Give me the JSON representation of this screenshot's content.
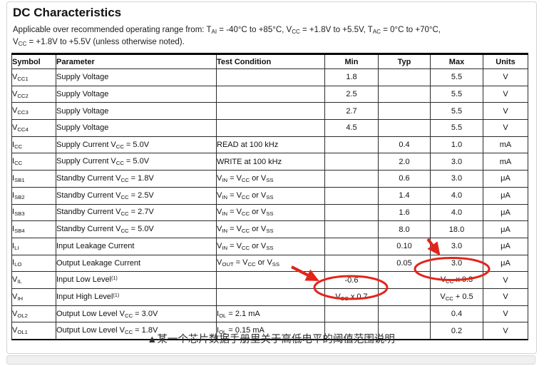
{
  "page": {
    "title": "DC Characteristics",
    "subtitle_line1": "Applicable over recommended operating range from: T~AI~ = -40°C to +85°C, V~CC~ = +1.8V to +5.5V, T~AC~ = 0°C to +70°C,",
    "subtitle_line2": "V~CC~ = +1.8V to +5.5V (unless otherwise noted).",
    "caption": "▲某一个芯片数据手册里关于高低电平的阈值范围说明"
  },
  "table": {
    "headers": [
      "Symbol",
      "Parameter",
      "Test Condition",
      "Min",
      "Typ",
      "Max",
      "Units"
    ],
    "rows": [
      [
        "V~CC1~",
        "Supply Voltage",
        "",
        "1.8",
        "",
        "5.5",
        "V"
      ],
      [
        "V~CC2~",
        "Supply Voltage",
        "",
        "2.5",
        "",
        "5.5",
        "V"
      ],
      [
        "V~CC3~",
        "Supply Voltage",
        "",
        "2.7",
        "",
        "5.5",
        "V"
      ],
      [
        "V~CC4~",
        "Supply Voltage",
        "",
        "4.5",
        "",
        "5.5",
        "V"
      ],
      [
        "I~CC~",
        "Supply Current V~CC~ = 5.0V",
        "READ at 100 kHz",
        "",
        "0.4",
        "1.0",
        "mA"
      ],
      [
        "I~CC~",
        "Supply Current V~CC~ = 5.0V",
        "WRITE at 100 kHz",
        "",
        "2.0",
        "3.0",
        "mA"
      ],
      [
        "I~SB1~",
        "Standby Current V~CC~ = 1.8V",
        "V~IN~ = V~CC~ or V~SS~",
        "",
        "0.6",
        "3.0",
        "μA"
      ],
      [
        "I~SB2~",
        "Standby Current V~CC~ = 2.5V",
        "V~IN~ = V~CC~ or V~SS~",
        "",
        "1.4",
        "4.0",
        "μA"
      ],
      [
        "I~SB3~",
        "Standby Current V~CC~ = 2.7V",
        "V~IN~ = V~CC~ or V~SS~",
        "",
        "1.6",
        "4.0",
        "μA"
      ],
      [
        "I~SB4~",
        "Standby Current V~CC~ = 5.0V",
        "V~IN~ = V~CC~ or V~SS~",
        "",
        "8.0",
        "18.0",
        "μA"
      ],
      [
        "I~LI~",
        "Input Leakage Current",
        "V~IN~ = V~CC~ or V~SS~",
        "",
        "0.10",
        "3.0",
        "μA"
      ],
      [
        "I~LO~",
        "Output Leakage Current",
        "V~OUT~ = V~CC~ or V~SS~",
        "",
        "0.05",
        "3.0",
        "μA"
      ],
      [
        "V~IL~",
        "Input Low Level^(1)^",
        "",
        "-0.6",
        "",
        "V~CC~ x 0.3",
        "V"
      ],
      [
        "V~IH~",
        "Input High Level^(1)^",
        "",
        "V~CC~ x 0.7",
        "",
        "V~CC~ + 0.5",
        "V"
      ],
      [
        "V~OL2~",
        "Output Low Level V~CC~ = 3.0V",
        "I~OL~ = 2.1 mA",
        "",
        "",
        "0.4",
        "V"
      ],
      [
        "V~OL1~",
        "Output Low Level V~CC~ = 1.8V",
        "I~OL~ = 0.15 mA",
        "",
        "",
        "0.2",
        "V"
      ]
    ]
  },
  "annotations": {
    "color": "#e1251b",
    "circled_values": [
      "V~CC~ x 0.3",
      "V~CC~ x 0.7"
    ],
    "circled_cells": [
      {
        "row_index": 12,
        "column": "Max"
      },
      {
        "row_index": 13,
        "column": "Min"
      }
    ]
  }
}
